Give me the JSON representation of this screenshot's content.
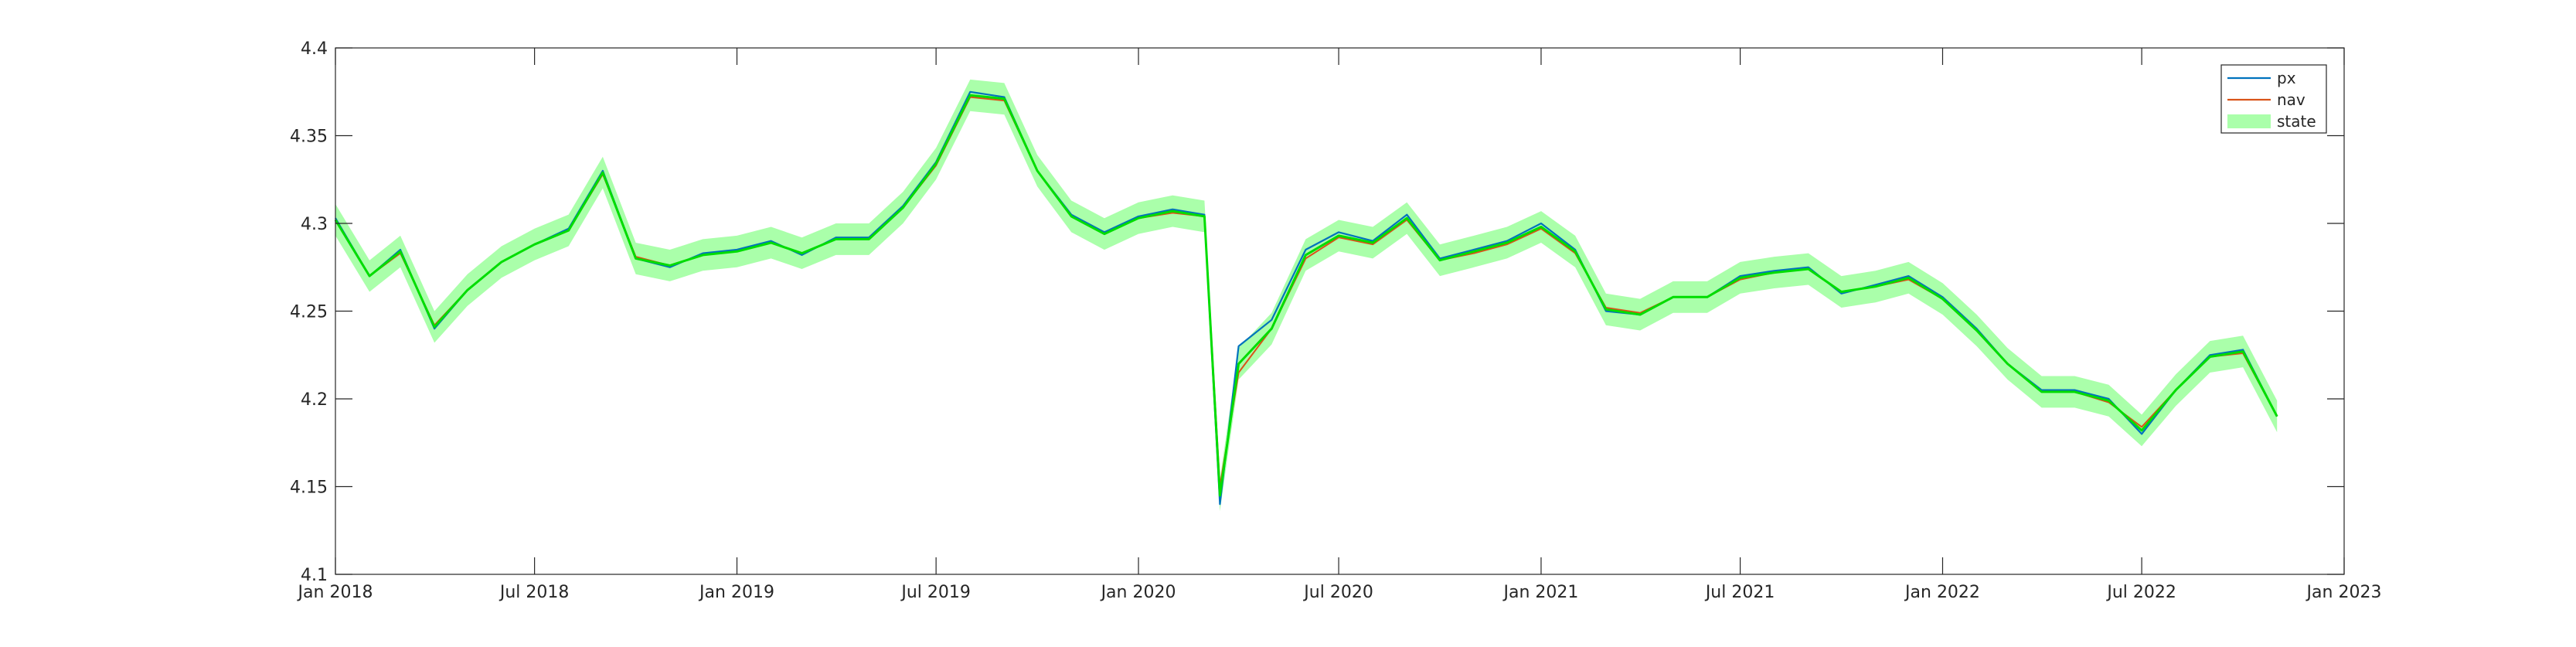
{
  "chart_data": {
    "type": "line",
    "title": "",
    "xlabel": "",
    "ylabel": "",
    "xlim": [
      "2018-01-01",
      "2023-01-01"
    ],
    "ylim": [
      4.1,
      4.4
    ],
    "grid": false,
    "legend_position": "top-right",
    "x_ticks": [
      "Jan 2018",
      "Jul 2018",
      "Jan 2019",
      "Jul 2019",
      "Jan 2020",
      "Jul 2020",
      "Jan 2021",
      "Jul 2021",
      "Jan 2022",
      "Jul 2022",
      "Jan 2023"
    ],
    "y_ticks": [
      "4.1",
      "4.15",
      "4.2",
      "4.25",
      "4.3",
      "4.35",
      "4.4"
    ],
    "x_tick_dates": [
      "2018-01-01",
      "2018-07-01",
      "2019-01-01",
      "2019-07-01",
      "2020-01-01",
      "2020-07-01",
      "2021-01-01",
      "2021-07-01",
      "2022-01-01",
      "2022-07-01",
      "2023-01-01"
    ],
    "y_tick_values": [
      4.1,
      4.15,
      4.2,
      4.25,
      4.3,
      4.35,
      4.4
    ],
    "x": [
      "2018-01-01",
      "2018-02-01",
      "2018-03-01",
      "2018-04-01",
      "2018-05-01",
      "2018-06-01",
      "2018-07-01",
      "2018-08-01",
      "2018-09-01",
      "2018-10-01",
      "2018-11-01",
      "2018-12-01",
      "2019-01-01",
      "2019-02-01",
      "2019-03-01",
      "2019-04-01",
      "2019-05-01",
      "2019-06-01",
      "2019-07-01",
      "2019-08-01",
      "2019-09-01",
      "2019-10-01",
      "2019-11-01",
      "2019-12-01",
      "2020-01-01",
      "2020-02-01",
      "2020-03-01",
      "2020-03-15",
      "2020-04-01",
      "2020-05-01",
      "2020-06-01",
      "2020-07-01",
      "2020-08-01",
      "2020-09-01",
      "2020-10-01",
      "2020-11-01",
      "2020-12-01",
      "2021-01-01",
      "2021-02-01",
      "2021-03-01",
      "2021-04-01",
      "2021-05-01",
      "2021-06-01",
      "2021-07-01",
      "2021-08-01",
      "2021-09-01",
      "2021-10-01",
      "2021-11-01",
      "2021-12-01",
      "2022-01-01",
      "2022-02-01",
      "2022-03-01",
      "2022-04-01",
      "2022-05-01",
      "2022-06-01",
      "2022-07-01",
      "2022-08-01",
      "2022-09-01",
      "2022-10-01",
      "2022-11-01"
    ],
    "series": [
      {
        "name": "px",
        "color": "#0072BD",
        "values": [
          4.303,
          4.27,
          4.285,
          4.24,
          4.262,
          4.278,
          4.288,
          4.297,
          4.33,
          4.28,
          4.275,
          4.283,
          4.285,
          4.29,
          4.282,
          4.292,
          4.292,
          4.31,
          4.335,
          4.375,
          4.372,
          4.33,
          4.305,
          4.295,
          4.304,
          4.308,
          4.305,
          4.14,
          4.23,
          4.245,
          4.285,
          4.295,
          4.29,
          4.305,
          4.28,
          4.285,
          4.29,
          4.3,
          4.285,
          4.25,
          4.248,
          4.258,
          4.258,
          4.27,
          4.273,
          4.275,
          4.26,
          4.265,
          4.27,
          4.258,
          4.24,
          4.22,
          4.205,
          4.205,
          4.2,
          4.18,
          4.205,
          4.225,
          4.228,
          4.19
        ]
      },
      {
        "name": "nav",
        "color": "#D95319",
        "values": [
          4.302,
          4.27,
          4.283,
          4.242,
          4.262,
          4.278,
          4.288,
          4.296,
          4.328,
          4.281,
          4.276,
          4.282,
          4.284,
          4.289,
          4.283,
          4.291,
          4.291,
          4.309,
          4.333,
          4.372,
          4.37,
          4.33,
          4.304,
          4.294,
          4.303,
          4.306,
          4.304,
          4.15,
          4.215,
          4.24,
          4.28,
          4.292,
          4.288,
          4.302,
          4.279,
          4.283,
          4.288,
          4.297,
          4.283,
          4.252,
          4.249,
          4.258,
          4.258,
          4.268,
          4.272,
          4.274,
          4.261,
          4.264,
          4.268,
          4.257,
          4.239,
          4.22,
          4.204,
          4.204,
          4.198,
          4.184,
          4.205,
          4.224,
          4.226,
          4.19
        ]
      },
      {
        "name": "state",
        "color": "#00DD00",
        "band_color": "#AAFFAA",
        "band_halfwidth": 0.009,
        "values": [
          4.302,
          4.27,
          4.284,
          4.241,
          4.262,
          4.278,
          4.288,
          4.296,
          4.329,
          4.28,
          4.276,
          4.282,
          4.284,
          4.289,
          4.283,
          4.291,
          4.291,
          4.309,
          4.334,
          4.373,
          4.371,
          4.33,
          4.304,
          4.294,
          4.303,
          4.307,
          4.304,
          4.145,
          4.22,
          4.24,
          4.282,
          4.293,
          4.289,
          4.303,
          4.279,
          4.284,
          4.289,
          4.298,
          4.284,
          4.251,
          4.248,
          4.258,
          4.258,
          4.269,
          4.272,
          4.274,
          4.261,
          4.264,
          4.269,
          4.257,
          4.239,
          4.22,
          4.204,
          4.204,
          4.199,
          4.182,
          4.205,
          4.224,
          4.227,
          4.19
        ]
      }
    ],
    "legend": [
      {
        "label": "px",
        "kind": "line",
        "color": "#0072BD"
      },
      {
        "label": "nav",
        "kind": "line",
        "color": "#D95319"
      },
      {
        "label": "state",
        "kind": "patch",
        "color": "#AAFFAA"
      }
    ]
  }
}
